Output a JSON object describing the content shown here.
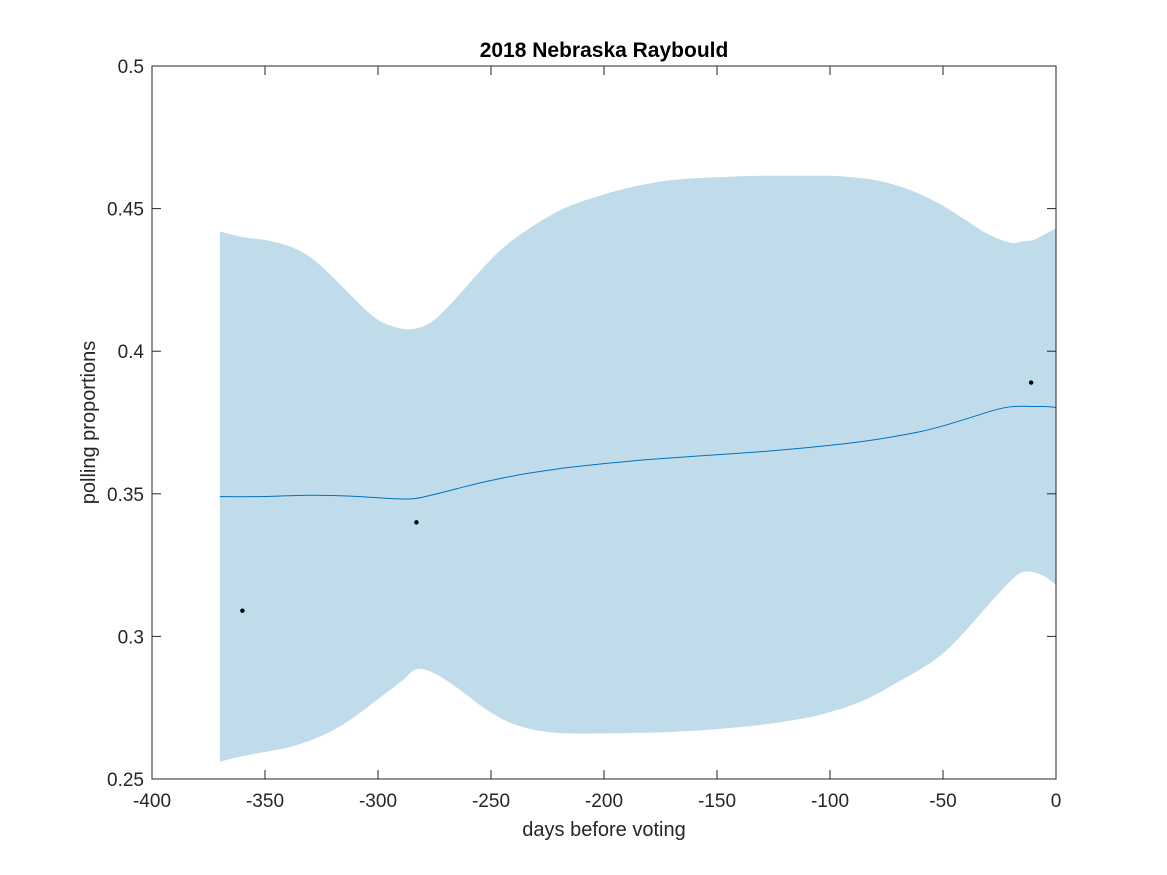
{
  "chart_data": {
    "type": "area",
    "title": "2018 Nebraska Raybould",
    "xlabel": "days before voting",
    "ylabel": "polling proportions",
    "xlim": [
      -400,
      0
    ],
    "ylim": [
      0.25,
      0.5
    ],
    "xticks": [
      -400,
      -350,
      -300,
      -250,
      -200,
      -150,
      -100,
      -50,
      0
    ],
    "xtick_labels": [
      "-400",
      "-350",
      "-300",
      "-250",
      "-200",
      "-150",
      "-100",
      "-50",
      "0"
    ],
    "yticks": [
      0.25,
      0.3,
      0.35,
      0.4,
      0.45,
      0.5
    ],
    "ytick_labels": [
      "0.25",
      "0.3",
      "0.35",
      "0.4",
      "0.45",
      "0.5"
    ],
    "grid": false,
    "box": true,
    "band": {
      "x": [
        -370,
        -360,
        -350,
        -340,
        -330,
        -320,
        -310,
        -300,
        -290,
        -283,
        -275,
        -265,
        -255,
        -245,
        -235,
        -225,
        -215,
        -200,
        -185,
        -170,
        -150,
        -130,
        -110,
        -100,
        -90,
        -80,
        -70,
        -60,
        -50,
        -40,
        -30,
        -20,
        -15,
        -10,
        -5,
        0
      ],
      "upper": [
        0.442,
        0.44,
        0.439,
        0.437,
        0.433,
        0.426,
        0.418,
        0.411,
        0.408,
        0.408,
        0.411,
        0.419,
        0.428,
        0.436,
        0.442,
        0.447,
        0.451,
        0.455,
        0.458,
        0.46,
        0.461,
        0.4615,
        0.4615,
        0.4615,
        0.461,
        0.46,
        0.458,
        0.455,
        0.451,
        0.446,
        0.441,
        0.438,
        0.4385,
        0.439,
        0.441,
        0.443
      ],
      "lower": [
        0.256,
        0.258,
        0.2595,
        0.261,
        0.2635,
        0.267,
        0.272,
        0.278,
        0.284,
        0.2885,
        0.287,
        0.282,
        0.276,
        0.271,
        0.268,
        0.2665,
        0.266,
        0.266,
        0.2662,
        0.2665,
        0.2675,
        0.269,
        0.2715,
        0.2735,
        0.276,
        0.2795,
        0.284,
        0.2885,
        0.294,
        0.302,
        0.311,
        0.3195,
        0.3225,
        0.3225,
        0.321,
        0.318
      ],
      "color": "#c0dcea"
    },
    "series": [
      {
        "x": [
          -370,
          -355,
          -340,
          -330,
          -320,
          -310,
          -300,
          -290,
          -283,
          -275,
          -265,
          -255,
          -245,
          -235,
          -225,
          -215,
          -200,
          -185,
          -170,
          -150,
          -130,
          -110,
          -100,
          -90,
          -80,
          -70,
          -60,
          -50,
          -40,
          -30,
          -25,
          -20,
          -15,
          -10,
          -5,
          0
        ],
        "y": [
          0.349,
          0.349,
          0.3493,
          0.3495,
          0.3494,
          0.3491,
          0.3486,
          0.3482,
          0.3484,
          0.3498,
          0.3518,
          0.3538,
          0.3555,
          0.357,
          0.3582,
          0.3593,
          0.3606,
          0.3617,
          0.3626,
          0.3637,
          0.3648,
          0.3662,
          0.367,
          0.3679,
          0.369,
          0.3703,
          0.3718,
          0.3738,
          0.3762,
          0.3787,
          0.3798,
          0.3805,
          0.3807,
          0.3806,
          0.3806,
          0.3803
        ],
        "color": "#0072bd"
      }
    ],
    "points": {
      "x": [
        -360,
        -283,
        -11
      ],
      "y": [
        0.309,
        0.34,
        0.389
      ],
      "color": "#000000"
    }
  }
}
